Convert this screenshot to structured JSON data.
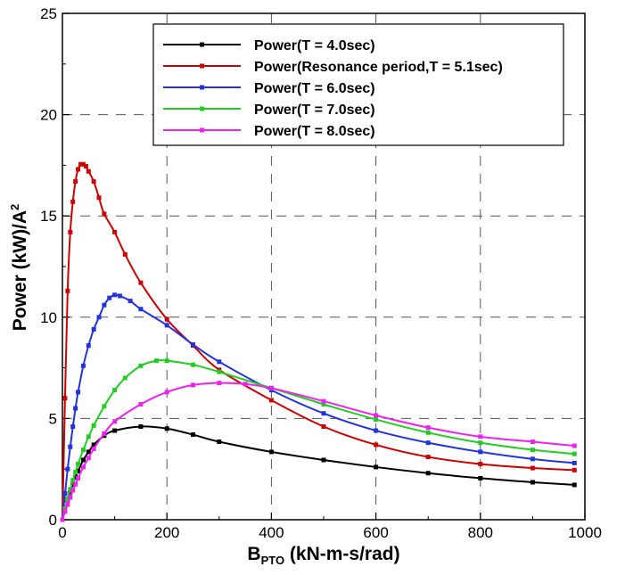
{
  "chart_data": {
    "type": "line",
    "title": "",
    "xlabel_main": "B",
    "xlabel_sub": "PTO",
    "xlabel_rest": " (kN-m-s/rad)",
    "ylabel_main": "Power (kW)/A",
    "ylabel_sup": "2",
    "xlim": [
      0,
      1000
    ],
    "ylim": [
      0,
      25
    ],
    "x_ticks": [
      0,
      200,
      400,
      600,
      800,
      1000
    ],
    "y_ticks": [
      0,
      5,
      10,
      15,
      20,
      25
    ],
    "grid": true,
    "legend_position": "top-right",
    "series": [
      {
        "name": "Power(T = 4.0sec)",
        "color": "#000000",
        "x": [
          0,
          5,
          10,
          15,
          20,
          25,
          30,
          40,
          50,
          60,
          80,
          100,
          150,
          200,
          250,
          300,
          400,
          500,
          600,
          700,
          800,
          900,
          980
        ],
        "y": [
          0,
          0.5,
          0.95,
          1.35,
          1.75,
          2.1,
          2.4,
          2.95,
          3.35,
          3.7,
          4.15,
          4.4,
          4.6,
          4.5,
          4.2,
          3.85,
          3.35,
          2.95,
          2.6,
          2.3,
          2.05,
          1.85,
          1.72
        ]
      },
      {
        "name": "Power(Resonance period,T = 5.1sec)",
        "color": "#cc0000",
        "x": [
          0,
          5,
          10,
          15,
          20,
          25,
          30,
          35,
          40,
          45,
          50,
          60,
          70,
          80,
          100,
          120,
          150,
          200,
          250,
          300,
          400,
          500,
          600,
          700,
          800,
          900,
          980
        ],
        "y": [
          0,
          6.0,
          11.3,
          14.2,
          15.7,
          16.7,
          17.3,
          17.55,
          17.55,
          17.45,
          17.2,
          16.7,
          15.9,
          15.1,
          14.2,
          13.1,
          11.7,
          9.9,
          8.6,
          7.4,
          5.9,
          4.6,
          3.7,
          3.1,
          2.75,
          2.55,
          2.45
        ]
      },
      {
        "name": "Power(T = 6.0sec)",
        "color": "#2233dd",
        "x": [
          0,
          5,
          10,
          15,
          20,
          25,
          30,
          40,
          50,
          60,
          70,
          80,
          90,
          100,
          110,
          130,
          150,
          200,
          250,
          300,
          400,
          500,
          600,
          700,
          800,
          900,
          980
        ],
        "y": [
          0,
          1.3,
          2.5,
          3.6,
          4.6,
          5.5,
          6.3,
          7.6,
          8.6,
          9.4,
          10.0,
          10.6,
          10.95,
          11.1,
          11.05,
          10.8,
          10.4,
          9.6,
          8.65,
          7.8,
          6.4,
          5.25,
          4.4,
          3.8,
          3.35,
          3.0,
          2.8
        ]
      },
      {
        "name": "Power(T = 7.0sec)",
        "color": "#22cc22",
        "x": [
          0,
          5,
          10,
          15,
          20,
          25,
          30,
          40,
          50,
          60,
          80,
          100,
          120,
          150,
          180,
          200,
          250,
          300,
          400,
          500,
          600,
          700,
          800,
          900,
          980
        ],
        "y": [
          0,
          0.55,
          1.05,
          1.5,
          1.95,
          2.35,
          2.75,
          3.45,
          4.1,
          4.65,
          5.6,
          6.4,
          7.0,
          7.6,
          7.85,
          7.85,
          7.65,
          7.3,
          6.5,
          5.7,
          4.95,
          4.3,
          3.8,
          3.45,
          3.25
        ]
      },
      {
        "name": "Power(T = 8.0sec)",
        "color": "#ee22ee",
        "x": [
          0,
          5,
          10,
          15,
          20,
          25,
          30,
          40,
          50,
          60,
          80,
          100,
          150,
          200,
          250,
          300,
          350,
          400,
          500,
          600,
          700,
          800,
          900,
          980
        ],
        "y": [
          0,
          0.4,
          0.75,
          1.1,
          1.45,
          1.75,
          2.05,
          2.6,
          3.05,
          3.5,
          4.25,
          4.85,
          5.7,
          6.3,
          6.65,
          6.75,
          6.7,
          6.5,
          5.85,
          5.15,
          4.55,
          4.1,
          3.85,
          3.65
        ]
      }
    ]
  }
}
